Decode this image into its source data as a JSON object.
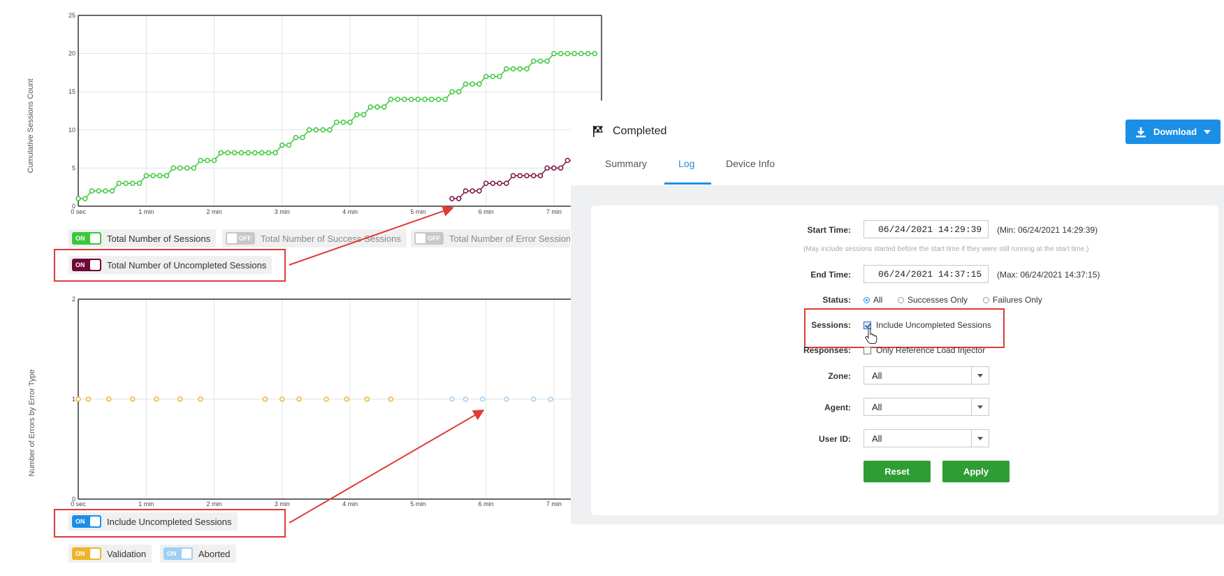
{
  "top_chart": {
    "ylabel": "Cumulative Sessions Count",
    "y_ticks": [
      "0",
      "5",
      "10",
      "15",
      "20",
      "25"
    ],
    "x_ticks": [
      "0 sec",
      "1 min",
      "2 min",
      "3 min",
      "4 min",
      "5 min",
      "6 min",
      "7 min"
    ],
    "colors": {
      "total": "#3cc83c",
      "uncompleted": "#7a1040"
    }
  },
  "chart_data": [
    {
      "type": "line",
      "ylabel": "Cumulative Sessions Count",
      "xlim": [
        0,
        7.7
      ],
      "ylim": [
        0,
        25
      ],
      "x_unit": "min",
      "series": [
        {
          "name": "Total Number of Sessions",
          "x": [
            0,
            0.1,
            0.2,
            0.3,
            0.4,
            0.5,
            0.6,
            0.7,
            0.8,
            0.9,
            1.0,
            1.1,
            1.2,
            1.3,
            1.4,
            1.5,
            1.6,
            1.7,
            1.8,
            1.9,
            2.0,
            2.1,
            2.2,
            2.3,
            2.4,
            2.5,
            2.6,
            2.7,
            2.8,
            2.9,
            3.0,
            3.1,
            3.2,
            3.3,
            3.4,
            3.5,
            3.6,
            3.7,
            3.8,
            3.9,
            4.0,
            4.1,
            4.2,
            4.3,
            4.4,
            4.5,
            4.6,
            4.7,
            4.8,
            4.9,
            5.0,
            5.1,
            5.2,
            5.3,
            5.4,
            5.5,
            5.6,
            5.7,
            5.8,
            5.9,
            6.0,
            6.1,
            6.2,
            6.3,
            6.4,
            6.5,
            6.6,
            6.7,
            6.8,
            6.9,
            7.0,
            7.1,
            7.2,
            7.3,
            7.4,
            7.5,
            7.6
          ],
          "y": [
            1,
            1,
            2,
            2,
            2,
            2,
            3,
            3,
            3,
            3,
            4,
            4,
            4,
            4,
            5,
            5,
            5,
            5,
            6,
            6,
            6,
            7,
            7,
            7,
            7,
            7,
            7,
            7,
            7,
            7,
            8,
            8,
            9,
            9,
            10,
            10,
            10,
            10,
            11,
            11,
            11,
            12,
            12,
            13,
            13,
            13,
            14,
            14,
            14,
            14,
            14,
            14,
            14,
            14,
            14,
            15,
            15,
            16,
            16,
            16,
            17,
            17,
            17,
            18,
            18,
            18,
            18,
            19,
            19,
            19,
            20,
            20,
            20,
            20,
            20,
            20,
            20
          ]
        },
        {
          "name": "Total Number of Uncompleted Sessions",
          "x": [
            5.5,
            5.6,
            5.7,
            5.8,
            5.9,
            6.0,
            6.1,
            6.2,
            6.3,
            6.4,
            6.5,
            6.6,
            6.7,
            6.8,
            6.9,
            7.0,
            7.1,
            7.2,
            7.3,
            7.4,
            7.5,
            7.6
          ],
          "y": [
            1,
            1,
            2,
            2,
            2,
            3,
            3,
            3,
            3,
            4,
            4,
            4,
            4,
            4,
            5,
            5,
            5,
            6,
            6,
            6,
            6,
            7
          ]
        }
      ]
    },
    {
      "type": "scatter",
      "ylabel": "Number of Errors by Error Type",
      "xlim": [
        0,
        7.7
      ],
      "ylim": [
        0,
        2
      ],
      "x_unit": "min",
      "series": [
        {
          "name": "Validation",
          "x": [
            0,
            0.15,
            0.45,
            0.8,
            1.15,
            1.5,
            1.8,
            2.75,
            3.0,
            3.25,
            3.65,
            3.95,
            4.25,
            4.6
          ],
          "y": [
            1,
            1,
            1,
            1,
            1,
            1,
            1,
            1,
            1,
            1,
            1,
            1,
            1,
            1
          ]
        },
        {
          "name": "Aborted",
          "x": [
            5.5,
            5.7,
            5.95,
            6.3,
            6.7,
            6.95
          ],
          "y": [
            1,
            1,
            1,
            1,
            1,
            1
          ]
        }
      ]
    }
  ],
  "bottom_chart": {
    "ylabel": "Number of Errors by Error Type",
    "y_ticks": [
      "0",
      "1",
      "2"
    ],
    "x_ticks": [
      "0 sec",
      "1 min",
      "2 min",
      "3 min",
      "4 min",
      "5 min",
      "6 min",
      "7 min"
    ],
    "colors": {
      "validation": "#f0b429",
      "aborted": "#9fcff2"
    }
  },
  "toggles": {
    "total_sessions": {
      "state": "ON",
      "label": "Total Number of Sessions",
      "color": "#3cc83c"
    },
    "success_sessions": {
      "state": "OFF",
      "label": "Total Number of Success Sessions",
      "color": "#c8c8c8"
    },
    "error_sessions": {
      "state": "OFF",
      "label": "Total Number of Error Sessions",
      "color": "#c8c8c8"
    },
    "uncompleted_sessions": {
      "state": "ON",
      "label": "Total Number of Uncompleted Sessions",
      "color": "#6e0a37"
    },
    "include_uncompleted": {
      "state": "ON",
      "label": "Include Uncompleted Sessions",
      "color": "#1b8fe6"
    },
    "validation": {
      "state": "ON",
      "label": "Validation",
      "color": "#f0b429"
    },
    "aborted": {
      "state": "ON",
      "label": "Aborted",
      "color": "#9fcff2"
    }
  },
  "panel": {
    "title": "Completed",
    "download_label": "Download",
    "tabs": [
      "Summary",
      "Log",
      "Device Info"
    ],
    "active_tab": "Log",
    "form": {
      "start_time_label": "Start Time:",
      "start_time_value": "06/24/2021 14:29:39",
      "start_time_min": "(Min: 06/24/2021 14:29:39)",
      "start_hint": "(May include sessions started before the start time if they were still running at the start time.)",
      "end_time_label": "End Time:",
      "end_time_value": "06/24/2021 14:37:15",
      "end_time_max": "(Max: 06/24/2021 14:37:15)",
      "status_label": "Status:",
      "status_options": [
        "All",
        "Successes Only",
        "Failures Only"
      ],
      "status_selected": "All",
      "sessions_label": "Sessions:",
      "sessions_option": "Include Uncompleted Sessions",
      "sessions_checked": true,
      "responses_label": "Responses:",
      "responses_option": "Only Reference Load Injector",
      "responses_checked": false,
      "zone_label": "Zone:",
      "zone_value": "All",
      "agent_label": "Agent:",
      "agent_value": "All",
      "userid_label": "User ID:",
      "userid_value": "All",
      "reset_label": "Reset",
      "apply_label": "Apply"
    }
  },
  "annotation_color": "#e03a3a"
}
